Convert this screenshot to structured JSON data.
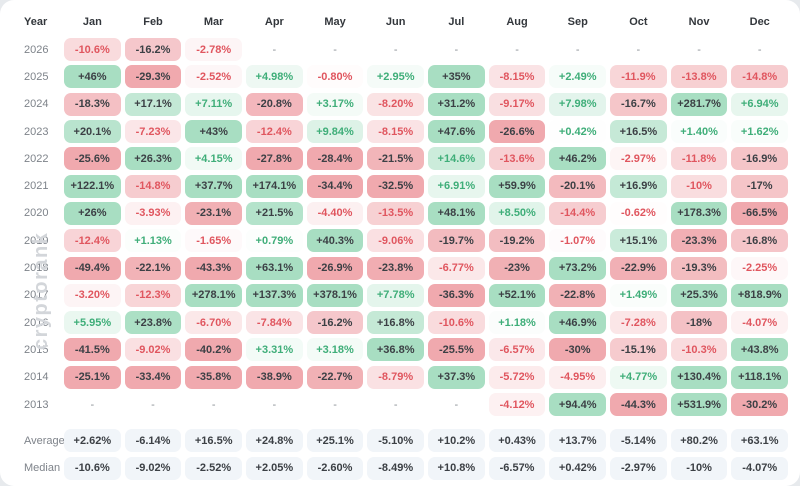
{
  "watermark": "cryptorank",
  "colors": {
    "page_bg": "#e7eaed",
    "card_bg": "#ffffff",
    "positive_strong_bg": "#a8dec2",
    "negative_strong_bg": "#f0a9ae",
    "positive_text": "#3fae79",
    "negative_text": "#e0565f",
    "dark_text": "#3c4045",
    "muted_text": "#7e838a",
    "summary_cell_bg": "#f1f5f9",
    "watermark_text": "#d3d6da"
  },
  "chart_data": {
    "type": "heatmap",
    "row_label_header": "Year",
    "columns": [
      "Jan",
      "Feb",
      "Mar",
      "Apr",
      "May",
      "Jun",
      "Jul",
      "Aug",
      "Sep",
      "Oct",
      "Nov",
      "Dec"
    ],
    "legend_note": "green = positive monthly return, red = negative monthly return, intensity scales with magnitude",
    "rows": [
      {
        "label": "2026",
        "values": [
          "-10.6%",
          "-16.2%",
          "-2.78%",
          "-",
          "-",
          "-",
          "-",
          "-",
          "-",
          "-",
          "-",
          "-"
        ]
      },
      {
        "label": "2025",
        "values": [
          "+46%",
          "-29.3%",
          "-2.52%",
          "+4.98%",
          "-0.80%",
          "+2.95%",
          "+35%",
          "-8.15%",
          "+2.49%",
          "-11.9%",
          "-13.8%",
          "-14.8%"
        ]
      },
      {
        "label": "2024",
        "values": [
          "-18.3%",
          "+17.1%",
          "+7.11%",
          "-20.8%",
          "+3.17%",
          "-8.20%",
          "+31.2%",
          "-9.17%",
          "+7.98%",
          "-16.7%",
          "+281.7%",
          "+6.94%"
        ]
      },
      {
        "label": "2023",
        "values": [
          "+20.1%",
          "-7.23%",
          "+43%",
          "-12.4%",
          "+9.84%",
          "-8.15%",
          "+47.6%",
          "-26.6%",
          "+0.42%",
          "+16.5%",
          "+1.40%",
          "+1.62%"
        ]
      },
      {
        "label": "2022",
        "values": [
          "-25.6%",
          "+26.3%",
          "+4.15%",
          "-27.8%",
          "-28.4%",
          "-21.5%",
          "+14.6%",
          "-13.6%",
          "+46.2%",
          "-2.97%",
          "-11.8%",
          "-16.9%"
        ]
      },
      {
        "label": "2021",
        "values": [
          "+122.1%",
          "-14.8%",
          "+37.7%",
          "+174.1%",
          "-34.4%",
          "-32.5%",
          "+6.91%",
          "+59.9%",
          "-20.1%",
          "+16.9%",
          "-10%",
          "-17%"
        ]
      },
      {
        "label": "2020",
        "values": [
          "+26%",
          "-3.93%",
          "-23.1%",
          "+21.5%",
          "-4.40%",
          "-13.5%",
          "+48.1%",
          "+8.50%",
          "-14.4%",
          "-0.62%",
          "+178.3%",
          "-66.5%"
        ]
      },
      {
        "label": "2019",
        "values": [
          "-12.4%",
          "+1.13%",
          "-1.65%",
          "+0.79%",
          "+40.3%",
          "-9.06%",
          "-19.7%",
          "-19.2%",
          "-1.07%",
          "+15.1%",
          "-23.3%",
          "-16.8%"
        ]
      },
      {
        "label": "2018",
        "values": [
          "-49.4%",
          "-22.1%",
          "-43.3%",
          "+63.1%",
          "-26.9%",
          "-23.8%",
          "-6.77%",
          "-23%",
          "+73.2%",
          "-22.9%",
          "-19.3%",
          "-2.25%"
        ]
      },
      {
        "label": "2017",
        "values": [
          "-3.20%",
          "-12.3%",
          "+278.1%",
          "+137.3%",
          "+378.1%",
          "+7.78%",
          "-36.3%",
          "+52.1%",
          "-22.8%",
          "+1.49%",
          "+25.3%",
          "+818.9%"
        ]
      },
      {
        "label": "2016",
        "values": [
          "+5.95%",
          "+23.8%",
          "-6.70%",
          "-7.84%",
          "-16.2%",
          "+16.8%",
          "-10.6%",
          "+1.18%",
          "+46.9%",
          "-7.28%",
          "-18%",
          "-4.07%"
        ]
      },
      {
        "label": "2015",
        "values": [
          "-41.5%",
          "-9.02%",
          "-40.2%",
          "+3.31%",
          "+3.18%",
          "+36.8%",
          "-25.5%",
          "-6.57%",
          "-30%",
          "-15.1%",
          "-10.3%",
          "+43.8%"
        ]
      },
      {
        "label": "2014",
        "values": [
          "-25.1%",
          "-33.4%",
          "-35.8%",
          "-38.9%",
          "-22.7%",
          "-8.79%",
          "+37.3%",
          "-5.72%",
          "-4.95%",
          "+4.77%",
          "+130.4%",
          "+118.1%"
        ]
      },
      {
        "label": "2013",
        "values": [
          "-",
          "-",
          "-",
          "-",
          "-",
          "-",
          "-",
          "-4.12%",
          "+94.4%",
          "-44.3%",
          "+531.9%",
          "-30.2%"
        ]
      }
    ],
    "summary_rows": [
      {
        "label": "Average",
        "values": [
          "+2.62%",
          "-6.14%",
          "+16.5%",
          "+24.8%",
          "+25.1%",
          "-5.10%",
          "+10.2%",
          "+0.43%",
          "+13.7%",
          "-5.14%",
          "+80.2%",
          "+63.1%"
        ]
      },
      {
        "label": "Median",
        "values": [
          "-10.6%",
          "-9.02%",
          "-2.52%",
          "+2.05%",
          "-2.60%",
          "-8.49%",
          "+10.8%",
          "-6.57%",
          "+0.42%",
          "-2.97%",
          "-10%",
          "-4.07%"
        ]
      }
    ]
  }
}
